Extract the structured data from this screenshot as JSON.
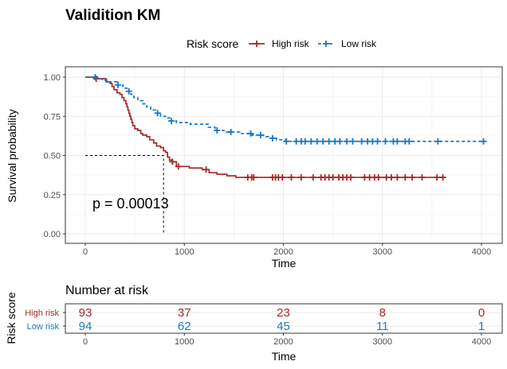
{
  "chart_data": {
    "type": "line",
    "title": "Validition KM",
    "xlabel": "Time",
    "ylabel": "Survival probability",
    "xlim": [
      0,
      4000
    ],
    "ylim": [
      0,
      1
    ],
    "x_ticks": [
      "0",
      "1000",
      "2000",
      "3000",
      "4000"
    ],
    "y_ticks": [
      "0.00",
      "0.25",
      "0.50",
      "0.75",
      "1.00"
    ],
    "grid": true,
    "legend": {
      "title": "Risk score",
      "position": "top",
      "entries": [
        "High risk",
        "Low risk"
      ]
    },
    "pvalue_text": "p = 0.00013",
    "median_survival": {
      "survival": 0.5,
      "time": 790
    },
    "series": [
      {
        "name": "High risk",
        "color": "#a52a2a",
        "dash": "solid",
        "steps": [
          [
            0,
            1.0
          ],
          [
            90,
            0.99
          ],
          [
            210,
            0.97
          ],
          [
            250,
            0.96
          ],
          [
            270,
            0.94
          ],
          [
            290,
            0.92
          ],
          [
            320,
            0.9
          ],
          [
            350,
            0.89
          ],
          [
            370,
            0.87
          ],
          [
            390,
            0.85
          ],
          [
            410,
            0.83
          ],
          [
            420,
            0.81
          ],
          [
            430,
            0.79
          ],
          [
            440,
            0.77
          ],
          [
            450,
            0.75
          ],
          [
            460,
            0.73
          ],
          [
            470,
            0.71
          ],
          [
            480,
            0.69
          ],
          [
            500,
            0.67
          ],
          [
            530,
            0.66
          ],
          [
            560,
            0.64
          ],
          [
            580,
            0.63
          ],
          [
            620,
            0.62
          ],
          [
            650,
            0.6
          ],
          [
            690,
            0.58
          ],
          [
            720,
            0.56
          ],
          [
            760,
            0.55
          ],
          [
            790,
            0.53
          ],
          [
            810,
            0.52
          ],
          [
            830,
            0.49
          ],
          [
            850,
            0.47
          ],
          [
            880,
            0.46
          ],
          [
            920,
            0.43
          ],
          [
            1050,
            0.42
          ],
          [
            1180,
            0.41
          ],
          [
            1250,
            0.39
          ],
          [
            1330,
            0.38
          ],
          [
            1430,
            0.37
          ],
          [
            1520,
            0.36
          ],
          [
            3640,
            0.36
          ]
        ],
        "censor_times": [
          110,
          880,
          940,
          1220,
          1640,
          1680,
          1700,
          1890,
          1920,
          1950,
          1990,
          2080,
          2180,
          2300,
          2380,
          2420,
          2460,
          2500,
          2560,
          2600,
          2640,
          2680,
          2820,
          2870,
          2920,
          2960,
          3040,
          3090,
          3150,
          3230,
          3300,
          3400,
          3550,
          3610
        ]
      },
      {
        "name": "Low risk",
        "color": "#1b77c2",
        "dash": "dashed",
        "steps": [
          [
            0,
            1.0
          ],
          [
            120,
            0.99
          ],
          [
            170,
            0.98
          ],
          [
            230,
            0.97
          ],
          [
            320,
            0.95
          ],
          [
            380,
            0.93
          ],
          [
            420,
            0.91
          ],
          [
            460,
            0.89
          ],
          [
            490,
            0.87
          ],
          [
            530,
            0.85
          ],
          [
            580,
            0.83
          ],
          [
            620,
            0.81
          ],
          [
            660,
            0.79
          ],
          [
            710,
            0.77
          ],
          [
            760,
            0.75
          ],
          [
            810,
            0.74
          ],
          [
            860,
            0.72
          ],
          [
            920,
            0.71
          ],
          [
            1060,
            0.7
          ],
          [
            1240,
            0.68
          ],
          [
            1310,
            0.66
          ],
          [
            1400,
            0.65
          ],
          [
            1560,
            0.64
          ],
          [
            1680,
            0.63
          ],
          [
            1800,
            0.62
          ],
          [
            1850,
            0.61
          ],
          [
            1930,
            0.6
          ],
          [
            2030,
            0.59
          ],
          [
            4020,
            0.59
          ]
        ],
        "censor_times": [
          100,
          330,
          440,
          730,
          870,
          1330,
          1470,
          1670,
          1770,
          1890,
          2030,
          2130,
          2180,
          2220,
          2280,
          2340,
          2400,
          2460,
          2520,
          2570,
          2640,
          2700,
          2790,
          2850,
          2900,
          2950,
          3030,
          3110,
          3150,
          3230,
          3270,
          3560,
          4020
        ]
      }
    ],
    "risk_table": {
      "title": "Number at risk",
      "ylabel": "Risk score",
      "times": [
        0,
        1000,
        2000,
        3000,
        4000
      ],
      "rows": [
        {
          "name": "High risk",
          "counts": [
            "93",
            "37",
            "23",
            "8",
            "0"
          ]
        },
        {
          "name": "Low risk",
          "counts": [
            "94",
            "62",
            "45",
            "11",
            "1"
          ]
        }
      ]
    }
  }
}
